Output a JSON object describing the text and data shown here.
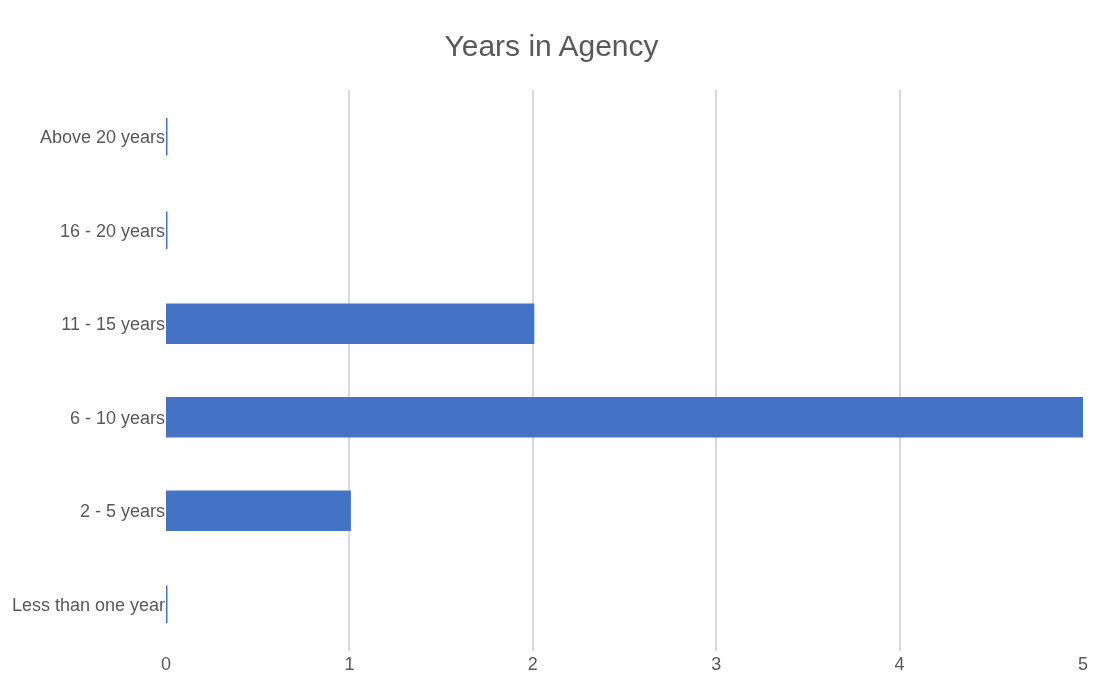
{
  "chart_data": {
    "type": "bar",
    "title": "Years in Agency",
    "orientation": "horizontal",
    "categories": [
      "Above 20 years",
      "16 - 20 years",
      "11 - 15 years",
      "6 - 10 years",
      "2 - 5 years",
      "Less than one year"
    ],
    "values": [
      0,
      0,
      2,
      5,
      1,
      0
    ],
    "color": "#4472c4",
    "xlim": [
      0,
      5
    ],
    "xticks": [
      0,
      1,
      2,
      3,
      4,
      5
    ],
    "grid": "x"
  }
}
